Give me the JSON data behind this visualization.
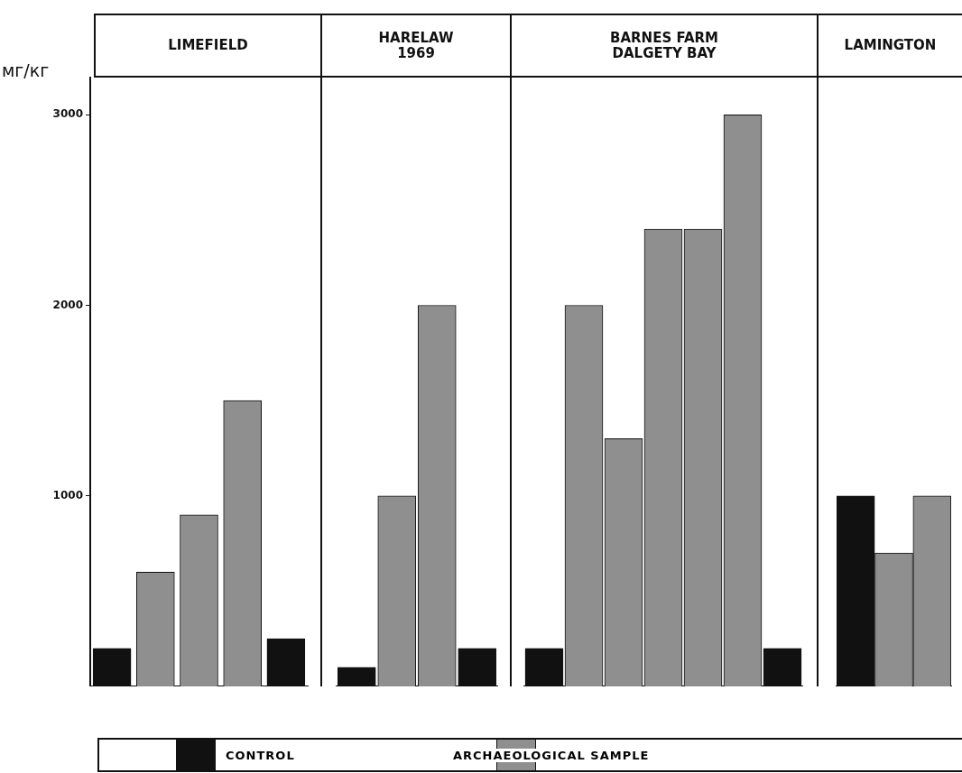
{
  "chart_data": [
    {
      "type": "bar",
      "title": "LIMEFIELD",
      "ylabel": "мг/кг",
      "categories": [
        null,
        null,
        null,
        null,
        null
      ],
      "ylim": [
        0,
        3200
      ],
      "yticks": [
        1000,
        2000,
        3000
      ],
      "grid": false,
      "values": [
        200,
        600,
        900,
        1500,
        250
      ],
      "colors": [
        "#111111",
        "#8f8f8f",
        "#8f8f8f",
        "#8f8f8f",
        "#111111"
      ],
      "annotations": [
        "CONTROL",
        "ARCHAEOLOGICAL SAMPLE"
      ]
    },
    {
      "type": "bar",
      "title": "HARELAW\n1969",
      "categories": [
        null,
        null,
        null,
        null
      ],
      "ylim": [
        0,
        3200
      ],
      "yticks": [
        1000,
        2000,
        3000
      ],
      "tick_labels": false,
      "grid": false,
      "values": [
        100,
        1000,
        2000,
        200
      ],
      "colors": [
        "#111111",
        "#8f8f8f",
        "#8f8f8f",
        "#111111"
      ]
    },
    {
      "type": "bar",
      "title": "BARNES FARM\nDALGETY BAY",
      "categories": [
        null,
        null,
        null,
        null,
        null,
        null,
        null
      ],
      "ylim": [
        0,
        3200
      ],
      "yticks": [
        1000,
        2000,
        3000
      ],
      "tick_labels": false,
      "grid": false,
      "values": [
        200,
        2000,
        1300,
        2400,
        2400,
        3000,
        200
      ],
      "colors": [
        "#111111",
        "#8f8f8f",
        "#8f8f8f",
        "#8f8f8f",
        "#8f8f8f",
        "#8f8f8f",
        "#111111"
      ]
    },
    {
      "type": "bar",
      "title": "LAMINGTON",
      "categories": [
        null,
        null,
        null
      ],
      "ylim": [
        0,
        3200
      ],
      "yticks": [
        1000,
        2000,
        3000
      ],
      "tick_labels": false,
      "grid": false,
      "values": [
        1000,
        700,
        1000
      ],
      "colors": [
        "#111111",
        "#8f8f8f",
        "#8f8f8f"
      ]
    }
  ]
}
